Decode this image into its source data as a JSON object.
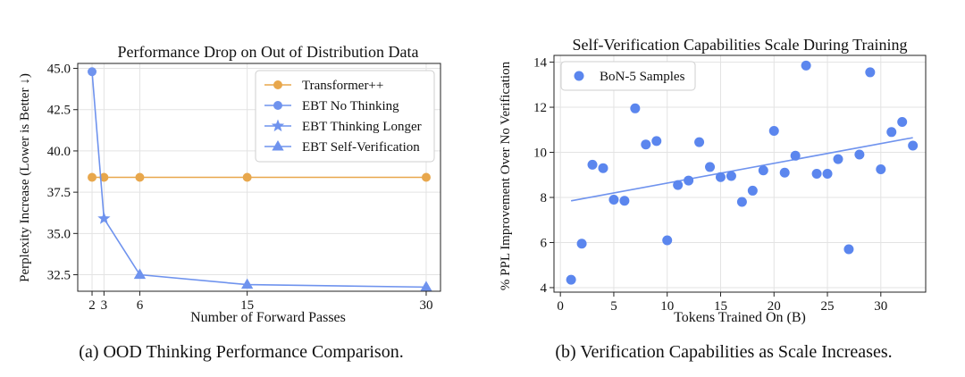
{
  "charts": [
    {
      "id": "a",
      "caption": "(a) OOD Thinking Performance Comparison.",
      "colors": {
        "transformer": "#e8a74c",
        "ebt": "#6f93ee"
      }
    },
    {
      "id": "b",
      "caption": "(b) Verification Capabilities as Scale Increases.",
      "colors": {
        "points": "#5b86ee",
        "fit": "#6f93ee"
      }
    }
  ],
  "chart_data": [
    {
      "type": "line",
      "title": "Performance Drop on Out of Distribution Data",
      "xlabel": "Number of Forward Passes",
      "ylabel": "Perplexity Increase (Lower is Better ↓)",
      "xlim": [
        0.8,
        31.2
      ],
      "ylim": [
        31.5,
        45.3
      ],
      "xticks": [
        2,
        3,
        6,
        15,
        30
      ],
      "yticks": [
        32.5,
        35.0,
        37.5,
        40.0,
        42.5,
        45.0
      ],
      "ytick_labels": [
        "32.5",
        "35.0",
        "37.5",
        "40.0",
        "42.5",
        "45.0"
      ],
      "grid": true,
      "legend_position": "top-right",
      "series": [
        {
          "name": "Transformer++",
          "marker": "circle",
          "color": "#e8a74c",
          "x": [
            2,
            3,
            6,
            15,
            30
          ],
          "y": [
            38.4,
            38.4,
            38.4,
            38.4,
            38.4
          ]
        },
        {
          "name": "EBT No Thinking",
          "marker": "circle",
          "color": "#6f93ee",
          "x": [
            2
          ],
          "y": [
            44.8
          ]
        },
        {
          "name": "EBT Thinking Longer",
          "marker": "star",
          "color": "#6f93ee",
          "x": [
            3
          ],
          "y": [
            35.9
          ]
        },
        {
          "name": "EBT Self-Verification",
          "marker": "triangle",
          "color": "#6f93ee",
          "x": [
            6,
            15,
            30
          ],
          "y": [
            32.5,
            31.9,
            31.75
          ]
        }
      ],
      "connector": {
        "color": "#6f93ee",
        "x": [
          2,
          3,
          6,
          15,
          30
        ],
        "y": [
          44.8,
          35.9,
          32.5,
          31.9,
          31.75
        ]
      }
    },
    {
      "type": "scatter",
      "title": "Self-Verification Capabilities Scale During Training",
      "xlabel": "Tokens Trained On (B)",
      "ylabel": "% PPL Improvement Over No Verification",
      "xlim": [
        -0.6,
        34.2
      ],
      "ylim": [
        3.8,
        14.3
      ],
      "xticks": [
        0,
        5,
        10,
        15,
        20,
        25,
        30
      ],
      "yticks": [
        4,
        6,
        8,
        10,
        12,
        14
      ],
      "grid": true,
      "legend_position": "top-left",
      "series": [
        {
          "name": "BoN-5 Samples",
          "color": "#5b86ee",
          "x": [
            1,
            2,
            3,
            4,
            5,
            6,
            7,
            8,
            9,
            10,
            11,
            12,
            13,
            14,
            15,
            16,
            17,
            18,
            19,
            20,
            21,
            22,
            23,
            24,
            25,
            26,
            27,
            28,
            29,
            30,
            31,
            32,
            33
          ],
          "y": [
            4.35,
            5.95,
            9.45,
            9.3,
            7.9,
            7.85,
            11.95,
            10.35,
            10.5,
            6.1,
            8.55,
            8.75,
            10.45,
            9.35,
            8.9,
            8.95,
            7.8,
            8.3,
            9.2,
            10.95,
            9.1,
            9.85,
            13.85,
            9.05,
            9.05,
            9.7,
            5.7,
            9.9,
            13.55,
            9.25,
            10.9,
            11.35,
            10.3
          ]
        }
      ],
      "fit_line": {
        "x": [
          1,
          33
        ],
        "y": [
          7.85,
          10.65
        ]
      }
    }
  ]
}
